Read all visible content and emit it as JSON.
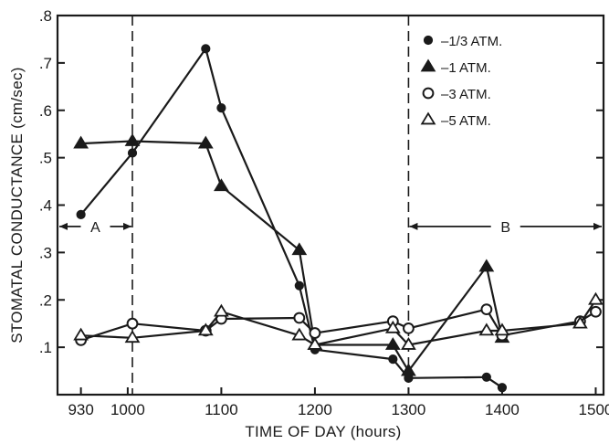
{
  "chart_data": {
    "type": "line",
    "title": "",
    "xlabel": "TIME OF DAY (hours)",
    "ylabel": "STOMATAL CONDUCTANCE (cm/sec)",
    "xlim": [
      915,
      1505
    ],
    "ylim": [
      0.0,
      0.8
    ],
    "x_ticks": [
      930,
      1000,
      1100,
      1200,
      1300,
      1400,
      1500
    ],
    "x_tick_labels": [
      "930",
      "1000",
      "1100",
      "1200",
      "1300",
      "1400",
      "1500"
    ],
    "y_ticks": [
      0.1,
      0.2,
      0.3,
      0.4,
      0.5,
      0.6,
      0.7,
      0.8
    ],
    "y_tick_labels": [
      ".1",
      ".2",
      ".3",
      ".4",
      ".5",
      ".6",
      ".7",
      ".8"
    ],
    "grid": false,
    "legend_position": "top-right",
    "series": [
      {
        "name": "–1/3 ATM.",
        "marker": "filled-circle",
        "points": [
          [
            930,
            0.38
          ],
          [
            1003,
            0.51
          ],
          [
            1050,
            0.73
          ],
          [
            1100,
            0.605
          ],
          [
            1150,
            0.23
          ],
          [
            1200,
            0.095
          ],
          [
            1250,
            0.075
          ],
          [
            1300,
            0.035
          ],
          [
            1350,
            0.037
          ],
          [
            1400,
            0.015
          ]
        ]
      },
      {
        "name": "–1 ATM.",
        "marker": "filled-triangle",
        "points": [
          [
            930,
            0.53
          ],
          [
            1003,
            0.535
          ],
          [
            1050,
            0.53
          ],
          [
            1100,
            0.44
          ],
          [
            1150,
            0.305
          ],
          [
            1200,
            0.105
          ],
          [
            1250,
            0.105
          ],
          [
            1300,
            0.05
          ],
          [
            1350,
            0.27
          ],
          [
            1400,
            0.12
          ]
        ]
      },
      {
        "name": "–3 ATM.",
        "marker": "open-circle",
        "points": [
          [
            930,
            0.115
          ],
          [
            1003,
            0.15
          ],
          [
            1050,
            0.135
          ],
          [
            1100,
            0.16
          ],
          [
            1150,
            0.162
          ],
          [
            1200,
            0.13
          ],
          [
            1250,
            0.155
          ],
          [
            1300,
            0.14
          ],
          [
            1350,
            0.18
          ],
          [
            1400,
            0.125
          ],
          [
            1450,
            0.155
          ],
          [
            1500,
            0.175
          ]
        ]
      },
      {
        "name": "–5 ATM.",
        "marker": "open-triangle",
        "points": [
          [
            930,
            0.125
          ],
          [
            1003,
            0.12
          ],
          [
            1050,
            0.135
          ],
          [
            1100,
            0.175
          ],
          [
            1150,
            0.125
          ],
          [
            1200,
            0.105
          ],
          [
            1250,
            0.14
          ],
          [
            1300,
            0.105
          ],
          [
            1350,
            0.135
          ],
          [
            1400,
            0.135
          ],
          [
            1450,
            0.15
          ],
          [
            1500,
            0.2
          ]
        ]
      }
    ],
    "reference_lines": [
      {
        "axis": "x",
        "value": 1003,
        "style": "dashed"
      },
      {
        "axis": "x",
        "value": 1300,
        "style": "dashed"
      }
    ],
    "annotations": [
      {
        "label": "A",
        "from_x": 915,
        "to_x": 1003,
        "y": 0.355
      },
      {
        "label": "B",
        "from_x": 1300,
        "to_x": 1505,
        "y": 0.355
      }
    ]
  }
}
